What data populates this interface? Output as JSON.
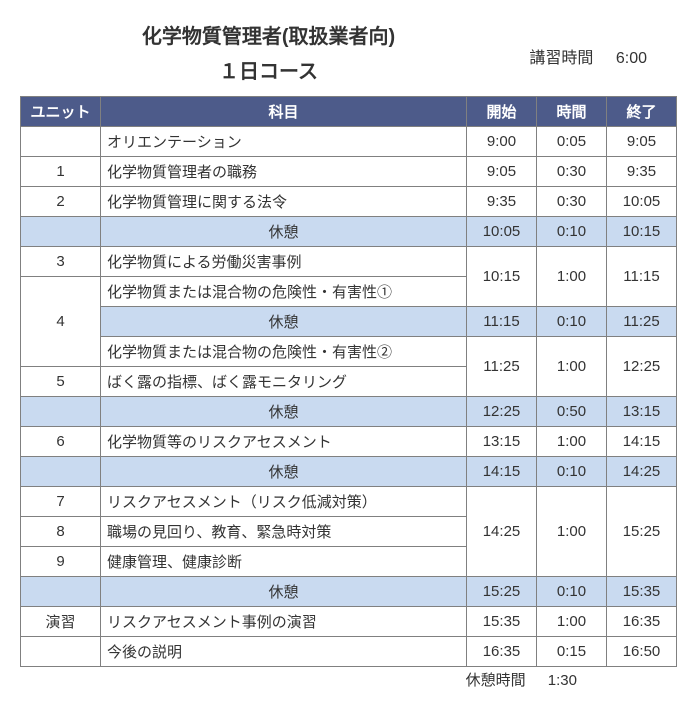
{
  "header": {
    "title_main": "化学物質管理者(取扱業者向)",
    "title_sub": "１日コース",
    "duration_label": "講習時間",
    "duration_value": "6:00"
  },
  "columns": {
    "unit": "ユニット",
    "subject": "科目",
    "start": "開始",
    "duration": "時間",
    "end": "終了"
  },
  "rows": [
    {
      "type": "normal",
      "unit": "",
      "subject": "オリエンテーション",
      "start": "9:00",
      "dur": "0:05",
      "end": "9:05"
    },
    {
      "type": "normal",
      "unit": "1",
      "subject": "化学物質管理者の職務",
      "start": "9:05",
      "dur": "0:30",
      "end": "9:35"
    },
    {
      "type": "normal",
      "unit": "2",
      "subject": "化学物質管理に関する法令",
      "start": "9:35",
      "dur": "0:30",
      "end": "10:05"
    },
    {
      "type": "break",
      "unit": "",
      "subject": "休憩",
      "start": "10:05",
      "dur": "0:10",
      "end": "10:15"
    }
  ],
  "block_3_4": {
    "unit_top": "3",
    "subj_top": "化学物質による労働災害事例",
    "subj_mid": "化学物質または混合物の危険性・有害性①",
    "start": "10:15",
    "dur": "1:00",
    "end": "11:15",
    "unit_bottom": "4"
  },
  "break_1115": {
    "subject": "休憩",
    "start": "11:15",
    "dur": "0:10",
    "end": "11:25"
  },
  "block_4_5": {
    "subj_top": "化学物質または混合物の危険性・有害性②",
    "unit_bottom": "5",
    "subj_bottom": "ばく露の指標、ばく露モニタリング",
    "start": "11:25",
    "dur": "1:00",
    "end": "12:25"
  },
  "break_1225": {
    "subject": "休憩",
    "start": "12:25",
    "dur": "0:50",
    "end": "13:15"
  },
  "row_6": {
    "unit": "6",
    "subject": "化学物質等のリスクアセスメント",
    "start": "13:15",
    "dur": "1:00",
    "end": "14:15"
  },
  "break_1415": {
    "subject": "休憩",
    "start": "14:15",
    "dur": "0:10",
    "end": "14:25"
  },
  "block_789": {
    "r7": {
      "unit": "7",
      "subject": "リスクアセスメント（リスク低減対策）"
    },
    "r8": {
      "unit": "8",
      "subject": "職場の見回り、教育、緊急時対策"
    },
    "r9": {
      "unit": "9",
      "subject": "健康管理、健康診断"
    },
    "start": "14:25",
    "dur": "1:00",
    "end": "15:25"
  },
  "break_1525": {
    "subject": "休憩",
    "start": "15:25",
    "dur": "0:10",
    "end": "15:35"
  },
  "row_ex": {
    "unit": "演習",
    "subject": "リスクアセスメント事例の演習",
    "start": "15:35",
    "dur": "1:00",
    "end": "16:35"
  },
  "row_last": {
    "unit": "",
    "subject": "今後の説明",
    "start": "16:35",
    "dur": "0:15",
    "end": "16:50"
  },
  "footer": {
    "label": "休憩時間",
    "value": "1:30"
  },
  "colors": {
    "header_bg": "#4d5b8a",
    "header_fg": "#ffffff",
    "break_bg": "#c9daf0",
    "border": "#808080",
    "page_bg": "#ffffff",
    "text": "#333333"
  }
}
